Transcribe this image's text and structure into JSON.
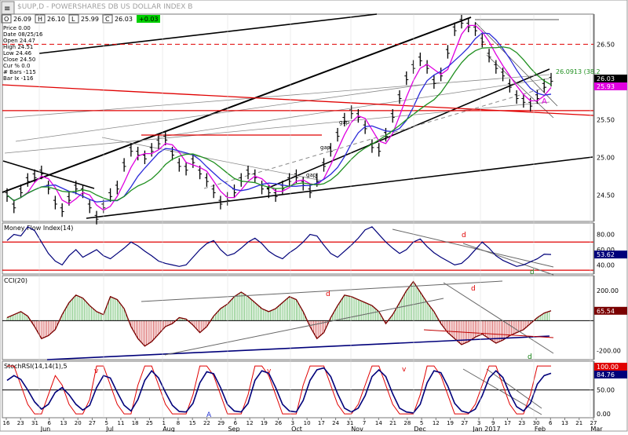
{
  "header": {
    "title": "$UUP,D - POWERSHARES DB US DOLLAR INDEX B",
    "quote_open": "26.09",
    "quote_high": "26.10",
    "quote_low": "25.99",
    "quote_close": "26.03",
    "quote_change": "+0.03"
  },
  "data_window": [
    "Price  0.00",
    "Date   08/25/16",
    "Open  24.47",
    "High   24.51",
    "Low    24.46",
    "Close  24.50",
    "Cur %  0.0",
    "# Bars -115",
    "Bar Ix -116"
  ],
  "colors": {
    "price_bar": "#000000",
    "ma_fast": "#e000e0",
    "ma_mid": "#2a2ad8",
    "ma_slow": "#1f8f1f",
    "horizontal_red": "#e00000",
    "mfi_line": "#00007a",
    "cci_line": "#7a0000",
    "cci_pos_fill": "#5fb85f",
    "cci_neg_fill": "#d04040",
    "stoch_k": "#e00000",
    "stoch_d": "#00007a",
    "panel_label_bg": "#00007a",
    "close_label_bg": "#000000",
    "ma_label_bg": "#e000e0",
    "cci_label_bg": "#7a0000",
    "stoch_label_k_bg": "#e00000",
    "change_box_bg": "#00d000"
  },
  "chart_data": [
    {
      "type": "line",
      "panel": "price",
      "series": [
        {
          "values": [
            24.5,
            24.35,
            24.55,
            24.7,
            24.75,
            24.8,
            24.6,
            24.4,
            24.3,
            24.45,
            24.6,
            24.55,
            24.35,
            24.2,
            24.35,
            24.5,
            24.6,
            24.9,
            25.1,
            25.05,
            25.0,
            25.1,
            25.2,
            25.25,
            25.05,
            24.9,
            24.85,
            24.95,
            24.8,
            24.7,
            24.55,
            24.4,
            24.45,
            24.55,
            24.7,
            24.8,
            24.75,
            24.6,
            24.55,
            24.5,
            24.6,
            24.7,
            24.75,
            24.65,
            24.55,
            24.7,
            24.9,
            25.1,
            25.3,
            25.5,
            25.6,
            25.55,
            25.4,
            25.15,
            25.1,
            25.3,
            25.55,
            25.8,
            26.05,
            26.2,
            26.3,
            26.2,
            26.0,
            26.1,
            26.4,
            26.7,
            26.8,
            26.75,
            26.7,
            26.55,
            26.35,
            26.2,
            26.1,
            25.95,
            25.8,
            25.75,
            25.7,
            25.8,
            25.95,
            26.03
          ]
        }
      ],
      "horizontal_levels": [
        26.5,
        25.62
      ],
      "annotations": [
        "gap",
        "gap",
        "gap",
        "A"
      ],
      "right_labels": [
        "26.0913 (38.2",
        "26.03",
        "25.93"
      ],
      "y_ticks": [
        "26.50",
        "26.00",
        "25.50",
        "25.00",
        "24.50"
      ],
      "ylim": [
        24.15,
        26.9
      ]
    },
    {
      "type": "line",
      "panel": "mfi",
      "title": "Money Flow Index(14)",
      "series": [
        {
          "values": [
            72,
            80,
            78,
            90,
            85,
            70,
            55,
            45,
            40,
            52,
            60,
            50,
            55,
            60,
            52,
            48,
            55,
            62,
            70,
            65,
            58,
            52,
            45,
            42,
            40,
            38,
            40,
            50,
            60,
            68,
            72,
            60,
            52,
            55,
            62,
            70,
            75,
            68,
            58,
            52,
            48,
            56,
            62,
            70,
            80,
            78,
            66,
            55,
            50,
            58,
            66,
            75,
            86,
            90,
            80,
            70,
            62,
            55,
            60,
            70,
            74,
            64,
            56,
            50,
            45,
            40,
            42,
            50,
            60,
            70,
            62,
            52,
            46,
            42,
            38,
            40,
            44,
            48,
            54,
            53.62
          ]
        }
      ],
      "horizontal_levels": [
        70,
        33
      ],
      "annotations": [
        "d",
        "d"
      ],
      "y_ticks": [
        "80.00",
        "60.00",
        "40.00"
      ],
      "current_label": "53.62",
      "ylim": [
        28,
        95
      ]
    },
    {
      "type": "area",
      "panel": "cci",
      "title": "CCI(20)",
      "series": [
        {
          "values": [
            20,
            40,
            60,
            30,
            -40,
            -120,
            -100,
            -60,
            40,
            120,
            170,
            150,
            100,
            60,
            40,
            160,
            140,
            80,
            -40,
            -120,
            -170,
            -140,
            -90,
            -40,
            -20,
            20,
            10,
            -30,
            -80,
            -40,
            30,
            80,
            110,
            160,
            190,
            160,
            120,
            80,
            60,
            80,
            120,
            160,
            140,
            60,
            -40,
            -120,
            -80,
            20,
            100,
            170,
            160,
            140,
            120,
            100,
            60,
            -20,
            40,
            120,
            200,
            260,
            190,
            120,
            60,
            -20,
            -80,
            -120,
            -160,
            -140,
            -110,
            -90,
            -120,
            -150,
            -130,
            -100,
            -80,
            -60,
            -20,
            20,
            50,
            65.54
          ]
        }
      ],
      "horizontal_levels": [
        0
      ],
      "annotations": [
        "d",
        "d",
        "d"
      ],
      "y_ticks": [
        "200.00",
        "-200.00"
      ],
      "current_label": "65.54",
      "ylim": [
        -260,
        300
      ]
    },
    {
      "type": "line",
      "panel": "stoch",
      "title": "StochRSI(14,14(1),5",
      "series": [
        {
          "name": "K",
          "values": [
            100,
            100,
            60,
            20,
            0,
            0,
            40,
            80,
            60,
            20,
            0,
            0,
            30,
            100,
            100,
            60,
            20,
            0,
            0,
            60,
            100,
            100,
            60,
            20,
            0,
            0,
            0,
            40,
            100,
            100,
            80,
            40,
            0,
            0,
            0,
            40,
            100,
            100,
            80,
            40,
            0,
            0,
            0,
            60,
            100,
            100,
            100,
            60,
            20,
            0,
            0,
            20,
            60,
            100,
            100,
            60,
            20,
            0,
            0,
            0,
            40,
            100,
            100,
            80,
            40,
            0,
            0,
            0,
            20,
            60,
            100,
            100,
            60,
            20,
            0,
            0,
            40,
            100,
            100,
            100
          ]
        },
        {
          "name": "D",
          "values": [
            70,
            80,
            72,
            50,
            25,
            10,
            20,
            45,
            55,
            40,
            20,
            8,
            18,
            55,
            80,
            75,
            45,
            18,
            6,
            30,
            70,
            90,
            75,
            45,
            18,
            5,
            4,
            22,
            65,
            88,
            84,
            55,
            20,
            6,
            4,
            22,
            70,
            90,
            85,
            55,
            20,
            6,
            4,
            28,
            70,
            92,
            96,
            78,
            42,
            12,
            4,
            12,
            38,
            78,
            92,
            78,
            42,
            12,
            4,
            2,
            20,
            65,
            90,
            86,
            58,
            22,
            6,
            2,
            10,
            38,
            75,
            90,
            76,
            42,
            15,
            6,
            22,
            62,
            80,
            84.76
          ]
        }
      ],
      "horizontal_levels": [
        50
      ],
      "annotations": [
        "v",
        "v",
        "v",
        "A"
      ],
      "y_ticks": [
        "100.00",
        "50.00",
        "0.00"
      ],
      "k_label": "100.00",
      "d_label": "84.76",
      "ylim": [
        -8,
        110
      ]
    }
  ],
  "x_axis": {
    "day_ticks": [
      "16",
      "23",
      "31",
      "6",
      "13",
      "20",
      "27",
      "5",
      "11",
      "18",
      "25",
      "1",
      "8",
      "15",
      "22",
      "29",
      "6",
      "12",
      "19",
      "26",
      "3",
      "10",
      "17",
      "24",
      "31",
      "7",
      "14",
      "21",
      "28",
      "5",
      "12",
      "19",
      "27",
      "3",
      "9",
      "17",
      "23",
      "30",
      "6",
      "13",
      "21",
      "27"
    ],
    "months": [
      "Jun",
      "Jul",
      "Aug",
      "Sep",
      "Oct",
      "Nov",
      "Dec",
      "Jan 2017",
      "Feb",
      "Mar"
    ]
  }
}
